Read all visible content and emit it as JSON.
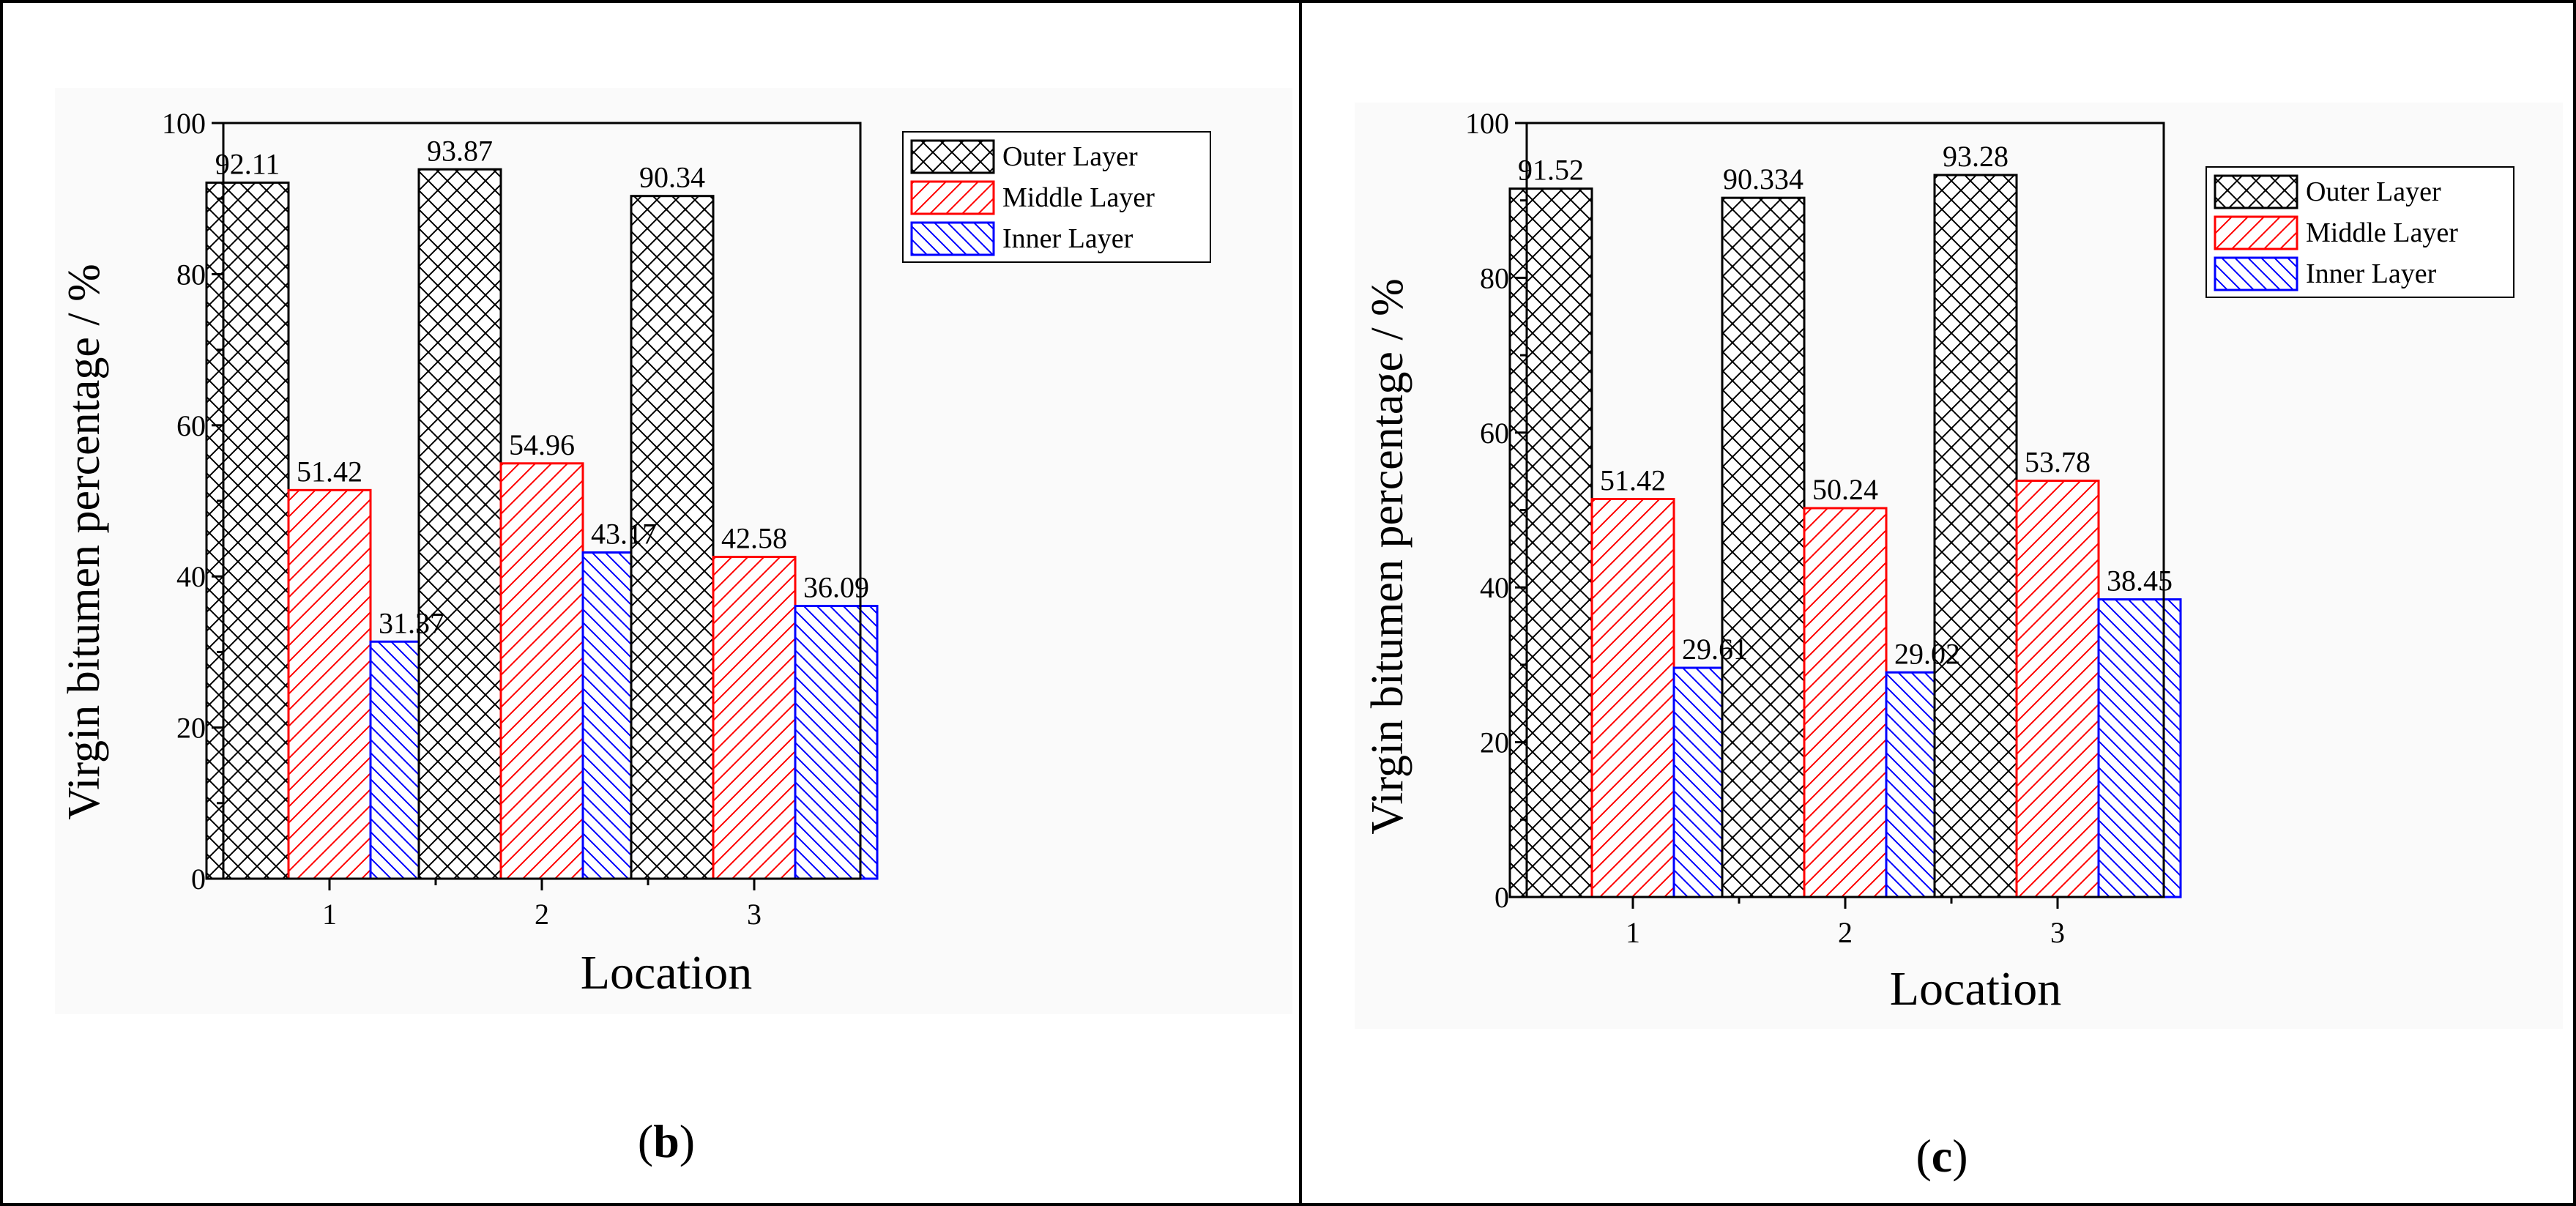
{
  "chart_data": [
    {
      "type": "bar",
      "panel_label": "b",
      "categories": [
        "1",
        "2",
        "3"
      ],
      "series": [
        {
          "name": "Outer Layer",
          "values": [
            92.11,
            93.87,
            90.34
          ],
          "value_labels": [
            "92.11",
            "93.87",
            "90.34"
          ],
          "color": "#000000",
          "pattern": "crosshatch"
        },
        {
          "name": "Middle Layer",
          "values": [
            51.42,
            54.96,
            42.58
          ],
          "value_labels": [
            "51.42",
            "54.96",
            "42.58"
          ],
          "color": "#ff0000",
          "pattern": "forward-diagonal"
        },
        {
          "name": "Inner Layer",
          "values": [
            31.37,
            43.17,
            36.09
          ],
          "value_labels": [
            "31.37",
            "43.17",
            "36.09"
          ],
          "color": "#0000ff",
          "pattern": "back-diagonal"
        }
      ],
      "title": "",
      "xlabel": "Location",
      "ylabel": "Virgin bitumen percentage / %",
      "ylim": [
        0,
        100
      ],
      "yticks": [
        0,
        20,
        40,
        60,
        80,
        100
      ],
      "legend_position": "top-right"
    },
    {
      "type": "bar",
      "panel_label": "c",
      "categories": [
        "1",
        "2",
        "3"
      ],
      "series": [
        {
          "name": "Outer Layer",
          "values": [
            91.52,
            90.334,
            93.28
          ],
          "value_labels": [
            "91.52",
            "90.334",
            "93.28"
          ],
          "color": "#000000",
          "pattern": "crosshatch"
        },
        {
          "name": "Middle Layer",
          "values": [
            51.42,
            50.24,
            53.78
          ],
          "value_labels": [
            "51.42",
            "50.24",
            "53.78"
          ],
          "color": "#ff0000",
          "pattern": "forward-diagonal"
        },
        {
          "name": "Inner Layer",
          "values": [
            29.61,
            29.02,
            38.45
          ],
          "value_labels": [
            "29.61",
            "29.02",
            "38.45"
          ],
          "color": "#0000ff",
          "pattern": "back-diagonal"
        }
      ],
      "title": "",
      "xlabel": "Location",
      "ylabel": "Virgin bitumen percentage / %",
      "ylim": [
        0,
        100
      ],
      "yticks": [
        0,
        20,
        40,
        60,
        80,
        100
      ],
      "legend_position": "top-right"
    }
  ]
}
